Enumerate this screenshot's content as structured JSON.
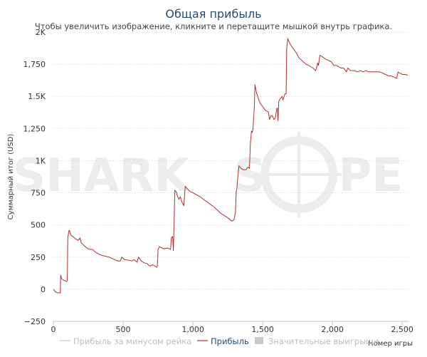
{
  "chart_data": {
    "type": "line",
    "title": "Общая прибыль",
    "subtitle": "Чтобы увеличить изображение, кликните и перетащите мышкой внутрь графика.",
    "xlabel": "Номер игры",
    "ylabel": "Суммарный итог (USD)",
    "watermark": "SHARK SCOPE",
    "xlim": [
      0,
      2550
    ],
    "ylim": [
      -250,
      2000
    ],
    "x_ticks": [
      {
        "v": 0,
        "label": "0"
      },
      {
        "v": 500,
        "label": "500"
      },
      {
        "v": 1000,
        "label": "1,000"
      },
      {
        "v": 1500,
        "label": "1,500"
      },
      {
        "v": 2000,
        "label": "2,000"
      },
      {
        "v": 2500,
        "label": "2,500"
      }
    ],
    "y_ticks": [
      {
        "v": -250,
        "label": "−250"
      },
      {
        "v": 0,
        "label": "0"
      },
      {
        "v": 250,
        "label": "250"
      },
      {
        "v": 500,
        "label": "500"
      },
      {
        "v": 750,
        "label": "750"
      },
      {
        "v": 1000,
        "label": "1K"
      },
      {
        "v": 1250,
        "label": "1,250"
      },
      {
        "v": 1500,
        "label": "1.5K"
      },
      {
        "v": 1750,
        "label": "1,750"
      },
      {
        "v": 2000,
        "label": "2K"
      }
    ],
    "grid": true,
    "legend_position": "bottom",
    "legend": [
      {
        "label": "Прибыль за минусом рейка",
        "kind": "line",
        "color": "#c8c8c8",
        "muted": true
      },
      {
        "label": "Прибыль",
        "kind": "line",
        "color": "#a83232",
        "muted": false
      },
      {
        "label": "Значительные выигрыши",
        "kind": "box",
        "color": "#c8c8c8",
        "muted": true
      }
    ],
    "series": [
      {
        "name": "Прибыль",
        "color": "#a83232",
        "points": [
          [
            0,
            0
          ],
          [
            15,
            -20
          ],
          [
            30,
            -28
          ],
          [
            45,
            -28
          ],
          [
            50,
            -30
          ],
          [
            52,
            110
          ],
          [
            60,
            80
          ],
          [
            75,
            70
          ],
          [
            95,
            60
          ],
          [
            100,
            70
          ],
          [
            103,
            390
          ],
          [
            110,
            450
          ],
          [
            115,
            460
          ],
          [
            125,
            420
          ],
          [
            140,
            410
          ],
          [
            160,
            390
          ],
          [
            180,
            380
          ],
          [
            190,
            400
          ],
          [
            200,
            360
          ],
          [
            220,
            340
          ],
          [
            240,
            320
          ],
          [
            260,
            310
          ],
          [
            280,
            310
          ],
          [
            300,
            290
          ],
          [
            330,
            270
          ],
          [
            360,
            260
          ],
          [
            400,
            250
          ],
          [
            440,
            230
          ],
          [
            460,
            220
          ],
          [
            480,
            220
          ],
          [
            490,
            250
          ],
          [
            510,
            230
          ],
          [
            540,
            225
          ],
          [
            560,
            220
          ],
          [
            580,
            230
          ],
          [
            600,
            210
          ],
          [
            610,
            250
          ],
          [
            630,
            220
          ],
          [
            650,
            205
          ],
          [
            670,
            200
          ],
          [
            690,
            180
          ],
          [
            710,
            190
          ],
          [
            730,
            180
          ],
          [
            740,
            170
          ],
          [
            745,
            180
          ],
          [
            750,
            310
          ],
          [
            760,
            330
          ],
          [
            790,
            315
          ],
          [
            820,
            320
          ],
          [
            840,
            310
          ],
          [
            845,
            400
          ],
          [
            855,
            410
          ],
          [
            860,
            300
          ],
          [
            865,
            500
          ],
          [
            870,
            770
          ],
          [
            880,
            760
          ],
          [
            890,
            720
          ],
          [
            900,
            700
          ],
          [
            910,
            720
          ],
          [
            920,
            680
          ],
          [
            935,
            650
          ],
          [
            945,
            800
          ],
          [
            960,
            780
          ],
          [
            980,
            760
          ],
          [
            1000,
            750
          ],
          [
            1050,
            720
          ],
          [
            1100,
            680
          ],
          [
            1150,
            640
          ],
          [
            1200,
            590
          ],
          [
            1250,
            555
          ],
          [
            1280,
            530
          ],
          [
            1295,
            540
          ],
          [
            1305,
            600
          ],
          [
            1310,
            760
          ],
          [
            1315,
            780
          ],
          [
            1320,
            850
          ],
          [
            1330,
            960
          ],
          [
            1345,
            940
          ],
          [
            1360,
            930
          ],
          [
            1380,
            930
          ],
          [
            1395,
            950
          ],
          [
            1405,
            940
          ],
          [
            1412,
            1140
          ],
          [
            1420,
            1230
          ],
          [
            1425,
            1220
          ],
          [
            1430,
            1240
          ],
          [
            1440,
            1420
          ],
          [
            1445,
            1590
          ],
          [
            1455,
            1530
          ],
          [
            1470,
            1480
          ],
          [
            1480,
            1450
          ],
          [
            1500,
            1420
          ],
          [
            1520,
            1390
          ],
          [
            1540,
            1380
          ],
          [
            1550,
            1320
          ],
          [
            1560,
            1350
          ],
          [
            1570,
            1350
          ],
          [
            1580,
            1320
          ],
          [
            1590,
            1330
          ],
          [
            1600,
            1400
          ],
          [
            1605,
            1410
          ],
          [
            1610,
            1310
          ],
          [
            1615,
            1460
          ],
          [
            1625,
            1480
          ],
          [
            1640,
            1500
          ],
          [
            1645,
            1470
          ],
          [
            1660,
            1520
          ],
          [
            1668,
            1520
          ],
          [
            1672,
            1870
          ],
          [
            1680,
            1950
          ],
          [
            1690,
            1920
          ],
          [
            1700,
            1900
          ],
          [
            1720,
            1870
          ],
          [
            1740,
            1840
          ],
          [
            1760,
            1800
          ],
          [
            1790,
            1770
          ],
          [
            1810,
            1750
          ],
          [
            1830,
            1740
          ],
          [
            1860,
            1720
          ],
          [
            1880,
            1700
          ],
          [
            1895,
            1760
          ],
          [
            1900,
            1740
          ],
          [
            1910,
            1820
          ],
          [
            1925,
            1810
          ],
          [
            1950,
            1790
          ],
          [
            1970,
            1780
          ],
          [
            1990,
            1770
          ],
          [
            2010,
            1740
          ],
          [
            2030,
            1740
          ],
          [
            2060,
            1720
          ],
          [
            2080,
            1720
          ],
          [
            2100,
            1690
          ],
          [
            2110,
            1720
          ],
          [
            2130,
            1700
          ],
          [
            2160,
            1700
          ],
          [
            2180,
            1690
          ],
          [
            2200,
            1700
          ],
          [
            2220,
            1690
          ],
          [
            2240,
            1700
          ],
          [
            2260,
            1690
          ],
          [
            2280,
            1690
          ],
          [
            2300,
            1690
          ],
          [
            2320,
            1690
          ],
          [
            2340,
            1690
          ],
          [
            2360,
            1680
          ],
          [
            2380,
            1670
          ],
          [
            2400,
            1660
          ],
          [
            2420,
            1660
          ],
          [
            2440,
            1650
          ],
          [
            2460,
            1640
          ],
          [
            2470,
            1690
          ],
          [
            2480,
            1680
          ],
          [
            2490,
            1680
          ],
          [
            2500,
            1670
          ],
          [
            2520,
            1670
          ],
          [
            2540,
            1665
          ]
        ]
      }
    ]
  }
}
